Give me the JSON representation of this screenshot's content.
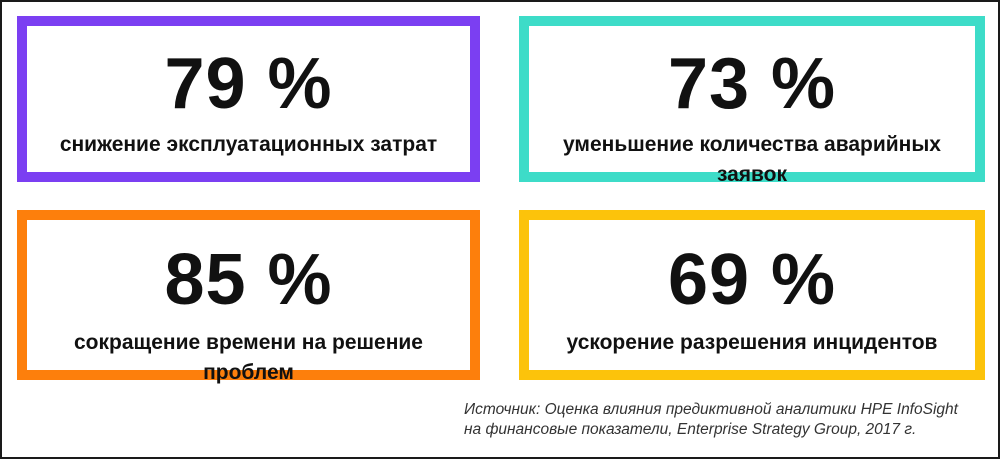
{
  "colors": {
    "purple": "#7b3ff2",
    "teal": "#3ddcc8",
    "orange": "#fd7f0c",
    "yellow": "#fcc30b"
  },
  "cards": [
    {
      "value": "79 %",
      "caption": "снижение эксплуатационных затрат",
      "border_color": "#7b3ff2"
    },
    {
      "value": "73 %",
      "caption": "уменьшение количества аварийных заявок",
      "border_color": "#3ddcc8"
    },
    {
      "value": "85 %",
      "caption": "сокращение времени на решение проблем",
      "border_color": "#fd7f0c"
    },
    {
      "value": "69 %",
      "caption": "ускорение разрешения инцидентов",
      "border_color": "#fcc30b"
    }
  ],
  "source": {
    "line1": "Источник: Оценка влияния предиктивной аналитики HPE InfoSight",
    "line2": "на финансовые показатели, Enterprise Strategy Group, 2017 г."
  }
}
